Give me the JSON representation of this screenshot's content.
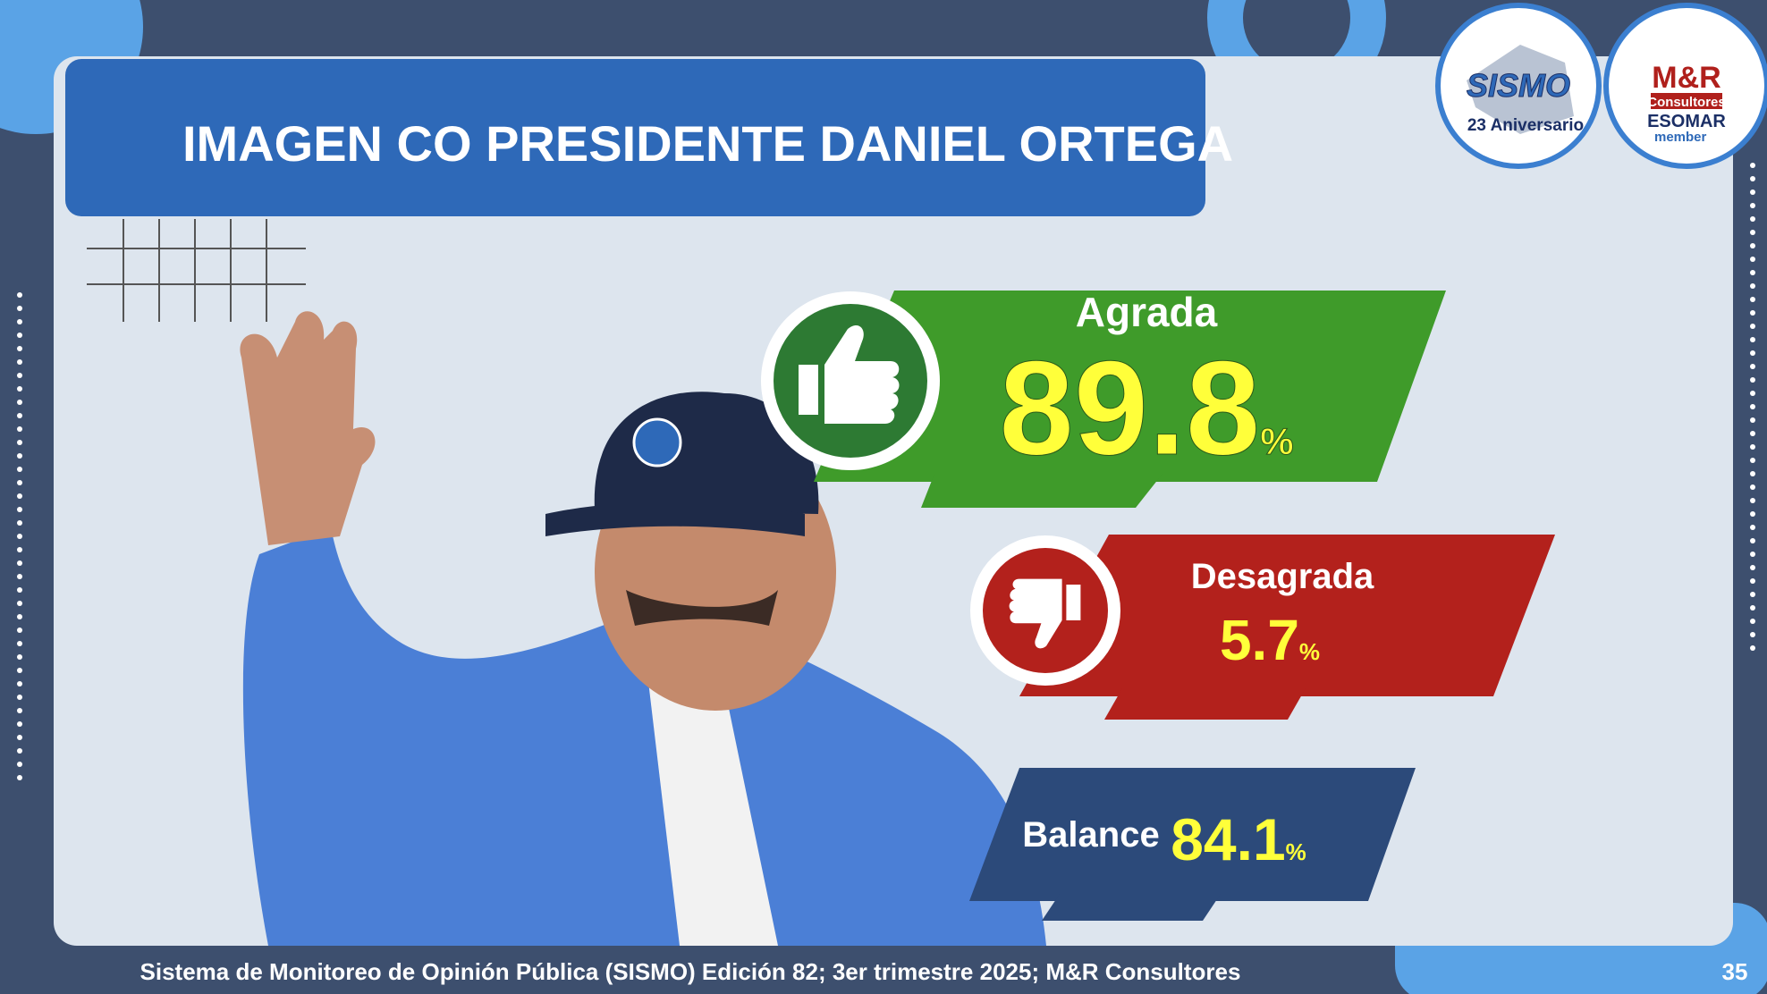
{
  "header": {
    "title": "IMAGEN CO PRESIDENTE DANIEL ORTEGA"
  },
  "logos": {
    "sismo": {
      "name": "SISMO",
      "caption": "23 Aniversario"
    },
    "mr": {
      "name": "M&R",
      "subtitle": "Consultores",
      "badge": "ESOMAR",
      "badge_caption": "member"
    }
  },
  "results": [
    {
      "label": "Agrada",
      "value": 89.8,
      "unit": "%"
    },
    {
      "label": "Desagrada",
      "value": 5.7,
      "unit": "%"
    },
    {
      "label": "Balance",
      "value": 84.1,
      "unit": "%"
    }
  ],
  "footer": {
    "source": "Sistema de Monitoreo de Opinión Pública (SISMO) Edición 82; 3er trimestre 2025; M&R Consultores",
    "page": 35
  }
}
